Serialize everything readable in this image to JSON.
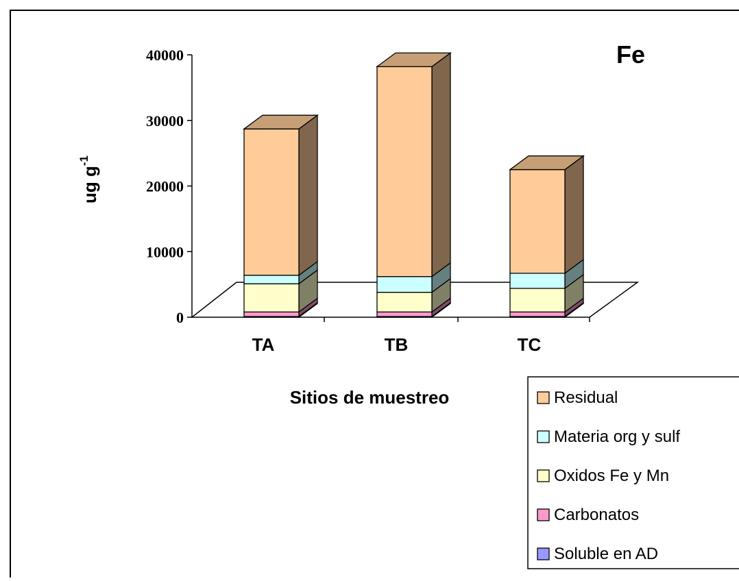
{
  "chart_data": {
    "type": "bar",
    "stacked": true,
    "three_d": true,
    "title": "Fe",
    "xlabel": "Sitios de muestreo",
    "ylabel": "ug g",
    "ylabel_superscript": "-1",
    "ylim": [
      0,
      40000
    ],
    "yticks": [
      0,
      10000,
      20000,
      30000,
      40000
    ],
    "ytick_labels": [
      "0",
      "10000",
      "20000",
      "30000",
      "40000"
    ],
    "categories": [
      "TA",
      "TB",
      "TC"
    ],
    "grid": false,
    "legend_position": "bottom-right",
    "series": [
      {
        "name": "Soluble en AD",
        "color": "#9999FF",
        "values": [
          100,
          100,
          100
        ]
      },
      {
        "name": "Carbonatos",
        "color": "#FF99CC",
        "values": [
          700,
          700,
          700
        ]
      },
      {
        "name": "Oxidos Fe y Mn",
        "color": "#FFFFCC",
        "values": [
          4300,
          3000,
          3600
        ]
      },
      {
        "name": "Materia org y sulf",
        "color": "#CCFFFF",
        "values": [
          1300,
          2400,
          2300
        ]
      },
      {
        "name": "Residual",
        "color": "#FFCC99",
        "values": [
          22300,
          32000,
          15800
        ]
      }
    ]
  }
}
